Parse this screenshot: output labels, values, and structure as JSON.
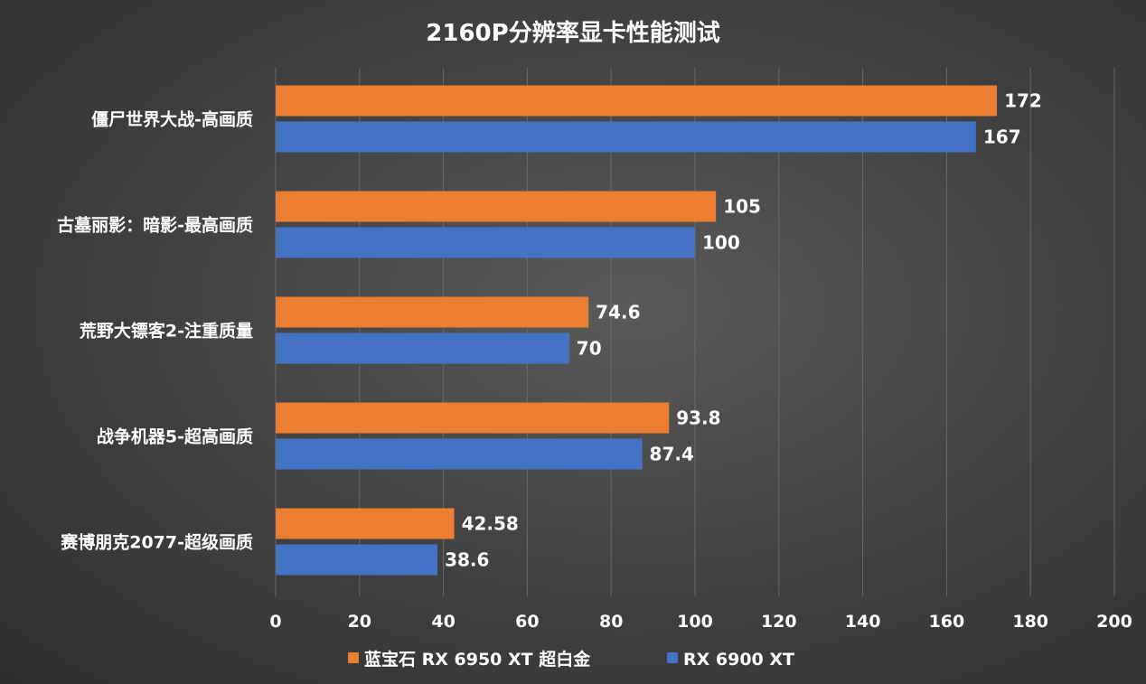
{
  "chart_data": {
    "type": "bar",
    "orientation": "horizontal",
    "title": "2160P分辨率显卡性能测试",
    "categories": [
      "僵尸世界大战-高画质",
      "古墓丽影：暗影-最高画质",
      "荒野大镖客2-注重质量",
      "战争机器5-超高画质",
      "赛博朋克2077-超级画质"
    ],
    "series": [
      {
        "name": "蓝宝石 RX 6950 XT 超白金",
        "color": "#ED7D31",
        "values": [
          172,
          105,
          74.6,
          93.8,
          42.58
        ],
        "labels": [
          "172",
          "105",
          "74.6",
          "93.8",
          "42.58"
        ]
      },
      {
        "name": "RX 6900 XT",
        "color": "#4472C4",
        "values": [
          167,
          100,
          70,
          87.4,
          38.6
        ],
        "labels": [
          "167",
          "100",
          "70",
          "87.4",
          "38.6"
        ]
      }
    ],
    "xlim": [
      0,
      200
    ],
    "xticks": [
      "0",
      "20",
      "40",
      "60",
      "80",
      "100",
      "120",
      "140",
      "160",
      "180",
      "200"
    ],
    "grid": true,
    "legend_position": "bottom"
  }
}
